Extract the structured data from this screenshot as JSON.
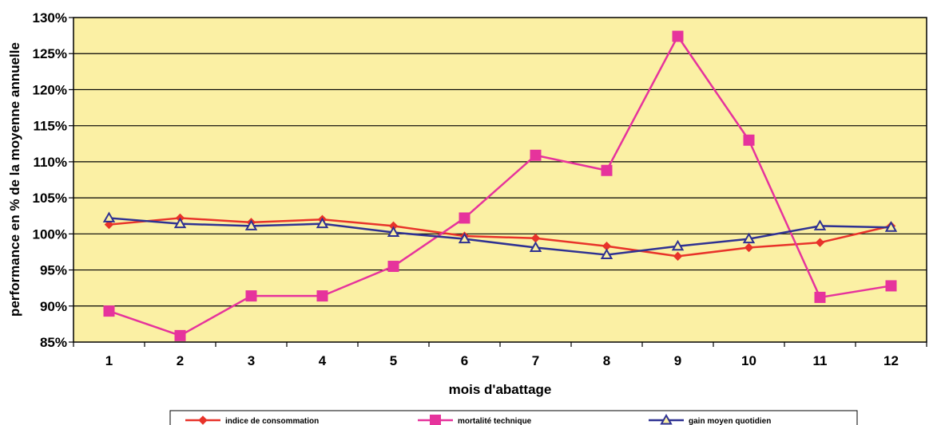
{
  "chart_data": {
    "type": "line",
    "title": "",
    "xlabel": "mois d'abattage",
    "ylabel": "performance en % de la moyenne annuelle",
    "x": [
      1,
      2,
      3,
      4,
      5,
      6,
      7,
      8,
      9,
      10,
      11,
      12
    ],
    "x_tick_labels": [
      "1",
      "2",
      "3",
      "4",
      "5",
      "6",
      "7",
      "8",
      "9",
      "10",
      "11",
      "12"
    ],
    "ylim": [
      85,
      130
    ],
    "y_ticks": [
      85,
      90,
      95,
      100,
      105,
      110,
      115,
      120,
      125,
      130
    ],
    "y_tick_labels": [
      "85%",
      "90%",
      "95%",
      "100%",
      "105%",
      "110%",
      "115%",
      "120%",
      "125%",
      "130%"
    ],
    "grid": true,
    "legend_position": "bottom",
    "plot_background": "#FBF0A4",
    "series": [
      {
        "name": "indice de consommation",
        "color": "#E8332A",
        "marker": "diamond",
        "values": [
          101.3,
          102.2,
          101.6,
          102.0,
          101.1,
          99.7,
          99.4,
          98.3,
          96.9,
          98.1,
          98.8,
          101.1
        ]
      },
      {
        "name": "mortalité technique",
        "color": "#E6339C",
        "marker": "square",
        "values": [
          89.3,
          85.9,
          91.4,
          91.4,
          95.5,
          102.2,
          110.9,
          108.8,
          127.4,
          113.0,
          91.2,
          92.8
        ]
      },
      {
        "name": "gain moyen quotidien",
        "color": "#2E3192",
        "marker": "triangle",
        "values": [
          102.2,
          101.4,
          101.1,
          101.4,
          100.2,
          99.3,
          98.1,
          97.1,
          98.3,
          99.3,
          101.1,
          100.9
        ]
      }
    ]
  }
}
